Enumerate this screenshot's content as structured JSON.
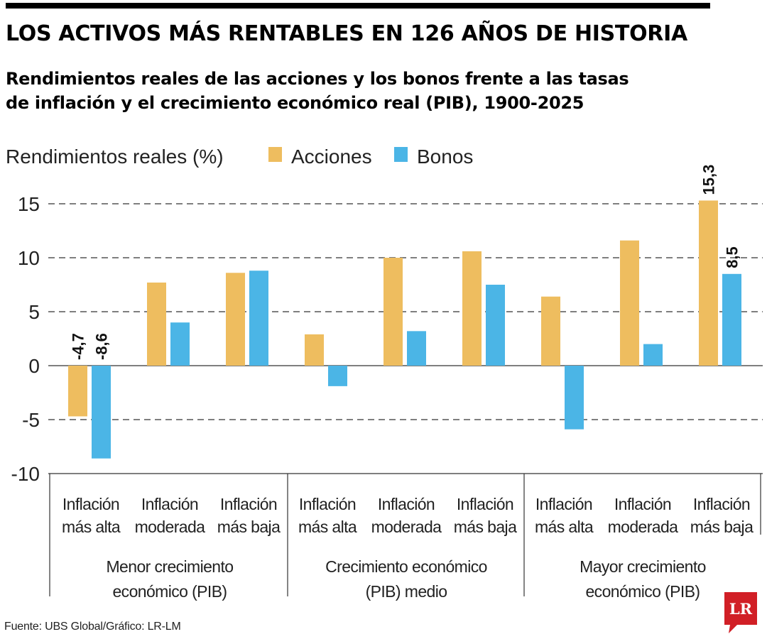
{
  "title": "LOS ACTIVOS MÁS RENTABLES EN 126 AÑOS DE HISTORIA",
  "subtitle_line1": "Rendimientos reales de las acciones y los bonos frente a las tasas",
  "subtitle_line2": "de inflación y el crecimiento económico real (PIB), 1900-2025",
  "source": "Fuente: UBS Global/Gráfico: LR-LM",
  "logo_text": "LR",
  "colors": {
    "acciones": "#eebd5f",
    "bonos": "#4bb5e6",
    "logo": "#d11f26"
  },
  "chart_data": {
    "type": "bar",
    "ylabel": "Rendimientos reales (%)",
    "ylim": [
      -10,
      15
    ],
    "yticks": [
      "15",
      "10",
      "5",
      "0",
      "-5",
      "-10"
    ],
    "grid": "dashed horizontal",
    "legend_position": "top",
    "categories": [
      "Inflación más alta",
      "Inflación moderada",
      "Inflación más baja",
      "Inflación más alta",
      "Inflación moderada",
      "Inflación más baja",
      "Inflación más alta",
      "Inflación moderada",
      "Inflación más baja"
    ],
    "category_lines": [
      [
        "Inflación",
        "más alta"
      ],
      [
        "Inflación",
        "moderada"
      ],
      [
        "Inflación",
        "más baja"
      ],
      [
        "Inflación",
        "más alta"
      ],
      [
        "Inflación",
        "moderada"
      ],
      [
        "Inflación",
        "más baja"
      ],
      [
        "Inflación",
        "más alta"
      ],
      [
        "Inflación",
        "moderada"
      ],
      [
        "Inflación",
        "más baja"
      ]
    ],
    "groups": [
      {
        "lines": [
          "Menor crecimiento",
          "económico (PIB)"
        ],
        "span": [
          0,
          2
        ]
      },
      {
        "lines": [
          "Crecimiento económico",
          "(PIB) medio"
        ],
        "span": [
          3,
          5
        ]
      },
      {
        "lines": [
          "Mayor crecimiento",
          "económico (PIB)"
        ],
        "span": [
          6,
          8
        ]
      }
    ],
    "series": [
      {
        "name": "Acciones",
        "values": [
          -4.7,
          7.7,
          8.6,
          2.9,
          10.0,
          10.6,
          6.4,
          11.6,
          15.3
        ]
      },
      {
        "name": "Bonos",
        "values": [
          -8.6,
          4.0,
          8.8,
          -1.9,
          3.2,
          7.5,
          -5.9,
          2.0,
          8.5
        ]
      }
    ],
    "data_labels": [
      {
        "series": 0,
        "index": 0,
        "text": "-4,7"
      },
      {
        "series": 1,
        "index": 0,
        "text": "-8,6"
      },
      {
        "series": 0,
        "index": 8,
        "text": "15,3"
      },
      {
        "series": 1,
        "index": 8,
        "text": "8,5"
      }
    ]
  }
}
